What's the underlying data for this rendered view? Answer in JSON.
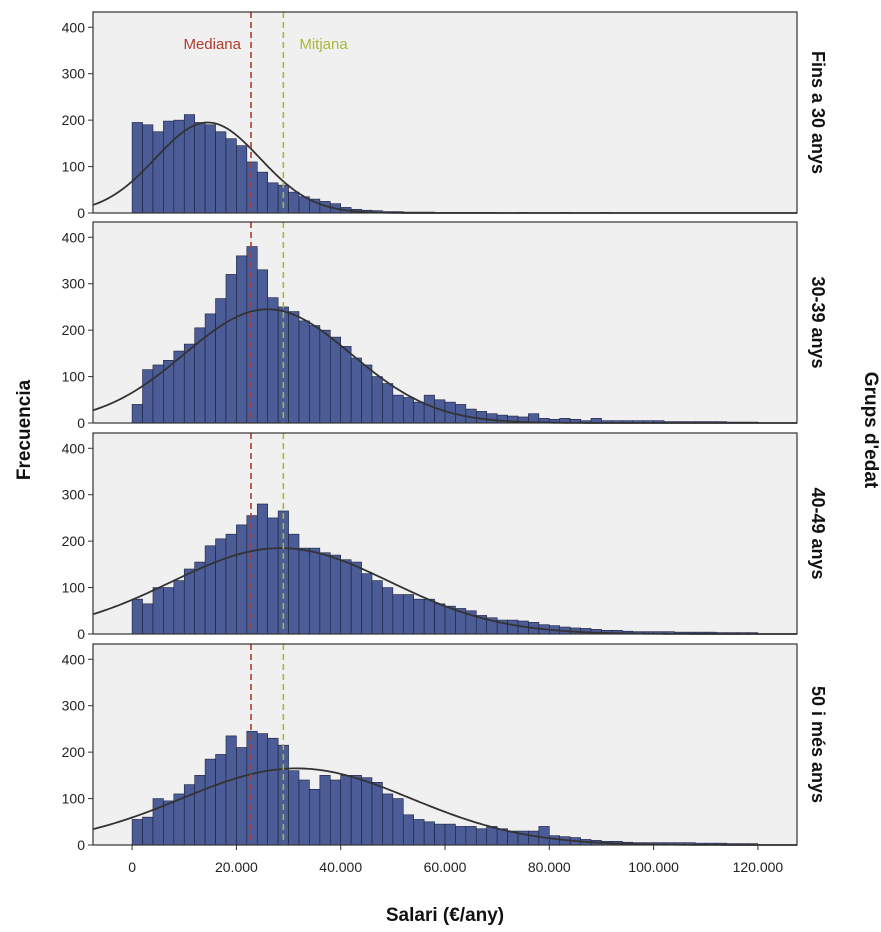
{
  "chart_data": {
    "type": "bar",
    "subtype": "faceted histogram with normal curve overlay",
    "xlabel": "Salari (€/any)",
    "ylabel": "Frecuencia",
    "facet_title": "Grups d'edat",
    "xlim": [
      -7500,
      127500
    ],
    "ylim": [
      0,
      420
    ],
    "x_ticks": [
      0,
      20000,
      40000,
      60000,
      80000,
      100000,
      120000
    ],
    "x_tick_labels": [
      "0",
      "20.000",
      "40.000",
      "60.000",
      "80.000",
      "100.000",
      "120.000"
    ],
    "y_ticks": [
      0,
      100,
      200,
      300,
      400
    ],
    "y_tick_labels": [
      "0",
      "100",
      "200",
      "300",
      "400"
    ],
    "bin_start": 0,
    "bin_width": 2000,
    "grid": false,
    "colors": {
      "bars": "#4b5c97",
      "bar_edge": "#1a1f3d",
      "panel_background": "#f0f0f0",
      "curve": "#333333",
      "median": "#b03a2e",
      "mean": "#a9b83a"
    },
    "reference_lines": [
      {
        "label": "Mediana",
        "x": 22800,
        "color": "#b03a2e"
      },
      {
        "label": "Mitjana",
        "x": 29000,
        "color": "#a9b83a"
      }
    ],
    "panels": [
      {
        "label": "Fins a 30 anys",
        "curve": {
          "mean": 14500,
          "sd": 10000,
          "peak": 195
        },
        "values": [
          195,
          190,
          175,
          198,
          200,
          212,
          195,
          190,
          175,
          160,
          145,
          110,
          88,
          65,
          60,
          45,
          35,
          30,
          25,
          20,
          12,
          8,
          6,
          5,
          3,
          3,
          2,
          2,
          2,
          1,
          1,
          1,
          1,
          1,
          1,
          0,
          0,
          1,
          0,
          0,
          0,
          1,
          0,
          0,
          0,
          1,
          0,
          0,
          0,
          0,
          0,
          0,
          0,
          0,
          0,
          0,
          0,
          0,
          0,
          0
        ]
      },
      {
        "label": "30-39 anys",
        "curve": {
          "mean": 26000,
          "sd": 16000,
          "peak": 245
        },
        "values": [
          40,
          115,
          125,
          135,
          155,
          170,
          205,
          235,
          268,
          320,
          360,
          380,
          330,
          270,
          250,
          240,
          220,
          210,
          200,
          185,
          165,
          140,
          125,
          100,
          85,
          60,
          55,
          45,
          60,
          50,
          45,
          40,
          30,
          25,
          20,
          17,
          15,
          13,
          20,
          10,
          8,
          10,
          8,
          5,
          10,
          5,
          5,
          5,
          5,
          5,
          5,
          3,
          3,
          3,
          3,
          3,
          3,
          2,
          2,
          2
        ]
      },
      {
        "label": "40-49 anys",
        "curve": {
          "mean": 28500,
          "sd": 21000,
          "peak": 185
        },
        "values": [
          75,
          65,
          100,
          100,
          115,
          140,
          155,
          190,
          205,
          215,
          235,
          255,
          280,
          250,
          265,
          215,
          185,
          185,
          175,
          170,
          160,
          155,
          130,
          115,
          100,
          85,
          85,
          75,
          75,
          65,
          60,
          55,
          50,
          40,
          35,
          30,
          30,
          28,
          25,
          20,
          18,
          15,
          13,
          12,
          10,
          8,
          8,
          6,
          5,
          5,
          5,
          5,
          4,
          4,
          4,
          4,
          3,
          3,
          3,
          3
        ]
      },
      {
        "label": "50 i més anys",
        "curve": {
          "mean": 31500,
          "sd": 22000,
          "peak": 165
        },
        "values": [
          55,
          60,
          100,
          95,
          110,
          130,
          150,
          185,
          195,
          235,
          210,
          245,
          240,
          230,
          215,
          160,
          140,
          120,
          150,
          140,
          150,
          150,
          145,
          135,
          110,
          100,
          65,
          55,
          50,
          45,
          45,
          40,
          40,
          35,
          40,
          35,
          30,
          30,
          30,
          40,
          20,
          18,
          16,
          12,
          10,
          8,
          8,
          6,
          5,
          5,
          5,
          5,
          5,
          5,
          4,
          4,
          4,
          3,
          3,
          3
        ]
      }
    ]
  }
}
